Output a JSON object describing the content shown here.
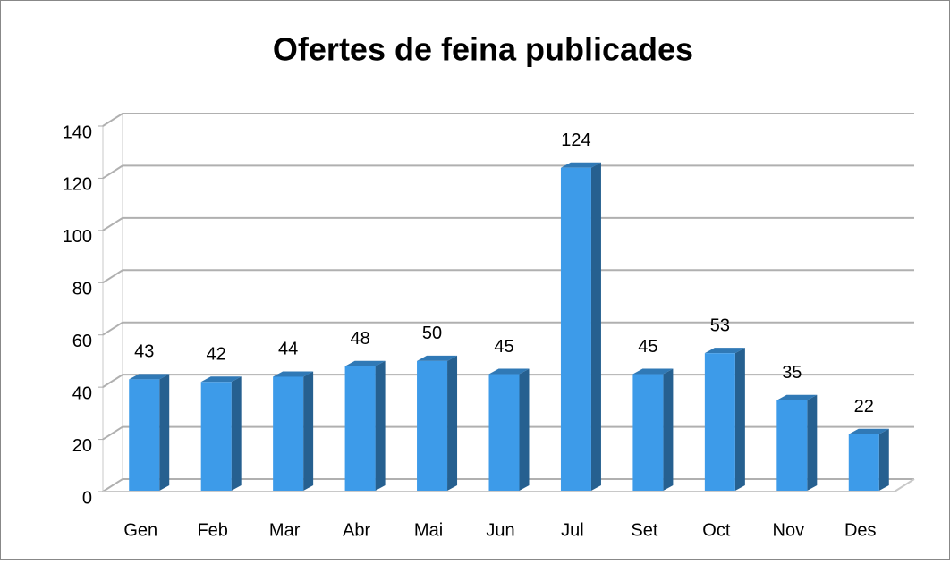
{
  "chart_data": {
    "type": "bar3d",
    "title": "Ofertes de feina publicades",
    "categories": [
      "Gen",
      "Feb",
      "Mar",
      "Abr",
      "Mai",
      "Jun",
      "Jul",
      "Set",
      "Oct",
      "Nov",
      "Des"
    ],
    "values": [
      43,
      42,
      44,
      48,
      50,
      45,
      124,
      45,
      53,
      35,
      22
    ],
    "color": "#3d9be9",
    "ylim": [
      0,
      140
    ],
    "yticks": [
      0,
      20,
      40,
      60,
      80,
      100,
      120,
      140
    ],
    "grid": true
  }
}
